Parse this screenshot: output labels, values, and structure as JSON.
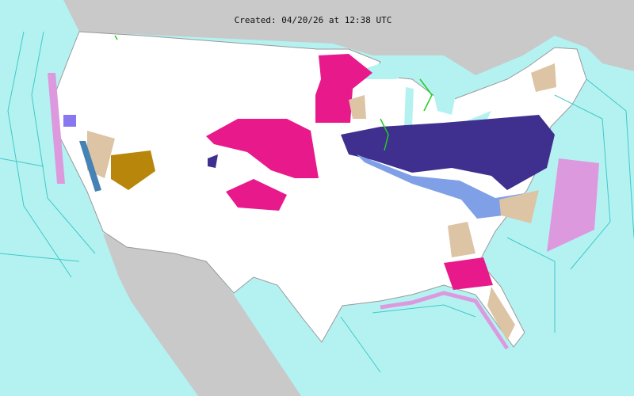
{
  "title": "Created: 04/20/26 at 12:38 UTC",
  "colors": {
    "ocean": "#b4f2f2",
    "foreign_land": "#c9c9c9",
    "us_land": "#ffffff",
    "marine_zone_lines": "#40c8c8",
    "navy_warning": "#3f2f8f",
    "light_blue_advisory": "#7f9fe6",
    "magenta_warning": "#e8198b",
    "tan_advisory": "#dcc4a4",
    "brown_warning": "#b8860b",
    "orchid_marine": "#dd99dd",
    "purple_advisory": "#8877ee",
    "steel_blue_advisory": "#4682b4",
    "green_lines": "#22cc22"
  }
}
